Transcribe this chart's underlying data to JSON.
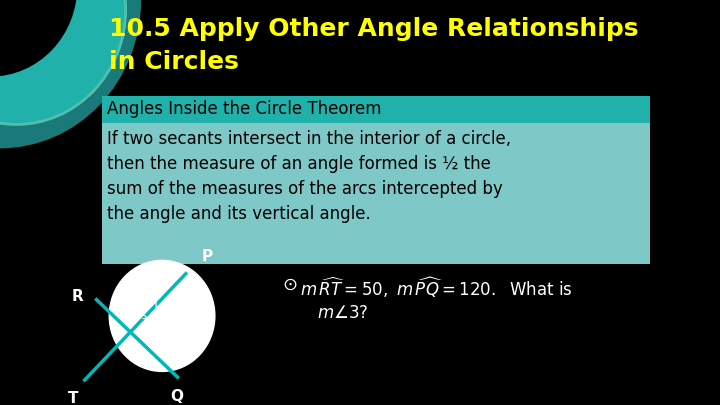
{
  "bg_color": "#000000",
  "title_line1": "10.5 Apply Other Angle Relationships",
  "title_line2": "in Circles",
  "title_color": "#ffff00",
  "title_fontsize": 18,
  "theorem_header": "Angles Inside the Circle Theorem",
  "theorem_header_bg": "#20b2aa",
  "theorem_header_color": "#000000",
  "theorem_body": "If two secants intersect in the interior of a circle,\nthen the measure of an angle formed is ½ the\nsum of the measures of the arcs intercepted by\nthe angle and its vertical angle.",
  "theorem_body_bg": "#7fc8c8",
  "theorem_body_color": "#000000",
  "example_text_color": "#ffffff",
  "circle_facecolor": "#ffffff",
  "line_color": "#00b8b8",
  "label_color": "#ffffff",
  "dec_fill_color": "#1a7a7a",
  "dec_outer_color": "#20b2aa",
  "dec_inner_color": "#4fc0b0"
}
